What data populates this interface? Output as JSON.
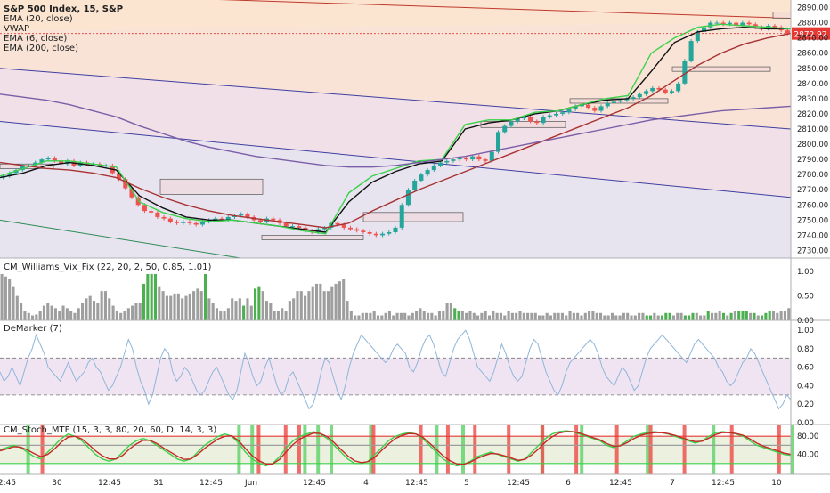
{
  "app": {
    "title": "S&P 500 Index, 15, S&P"
  },
  "legend": {
    "items": [
      "EMA (20, close)",
      "VWAP",
      "EMA (6, close)",
      "EMA (200, close)"
    ]
  },
  "price_tag": "2872.92",
  "panes": {
    "williams": "CM_Williams_Vix_Fix (22, 20, 2, 50, 0.85, 1.01)",
    "demarker": "DeMarker (7)",
    "stoch": "CM_Stoch_MTF (15, 3, 3, 80, 20, 60, D, 14, 3, 3)"
  },
  "colors": {
    "candle_up": "#26a69a",
    "candle_down": "#ef5350",
    "ema20": "#111111",
    "ema6": "#3bd14a",
    "ema200": "#a83232",
    "vwap": "#7b5ea7",
    "alert": "#ef5350",
    "bullish_bar": "#4caf50",
    "gray_bar": "#9e9e9e",
    "demarker_line": "#8fb6d9"
  },
  "chart_data": [
    {
      "type": "candlestick",
      "title": "S&P 500 Index, 15, S&P",
      "ylim": [
        2725,
        2895
      ],
      "y_ticks": [
        "2730.00",
        "2740.00",
        "2750.00",
        "2760.00",
        "2770.00",
        "2780.00",
        "2790.00",
        "2800.00",
        "2810.00",
        "2820.00",
        "2830.00",
        "2840.00",
        "2850.00",
        "2860.00",
        "2870.00",
        "2880.00",
        "2890.00"
      ],
      "x_tick_labels": [
        "2:45",
        "30",
        "12:45",
        "31",
        "12:45",
        "Jun",
        "12:45",
        "4",
        "12:45",
        "5",
        "12:45",
        "6",
        "12:45",
        "7",
        "12:45",
        "10"
      ],
      "close_series": [
        2779,
        2781,
        2783,
        2786,
        2786,
        2788,
        2790,
        2791,
        2789,
        2787,
        2789,
        2786,
        2788,
        2787,
        2787,
        2786,
        2786,
        2781,
        2777,
        2771,
        2765,
        2760,
        2756,
        2755,
        2752,
        2751,
        2749,
        2748,
        2749,
        2748,
        2747,
        2749,
        2750,
        2751,
        2750,
        2752,
        2753,
        2754,
        2752,
        2750,
        2749,
        2751,
        2750,
        2748,
        2746,
        2746,
        2745,
        2743,
        2742,
        2744,
        2745,
        2748,
        2747,
        2745,
        2744,
        2743,
        2742,
        2741,
        2740,
        2741,
        2742,
        2745,
        2760,
        2770,
        2776,
        2780,
        2783,
        2786,
        2788,
        2789,
        2790,
        2791,
        2790,
        2792,
        2790,
        2789,
        2795,
        2808,
        2812,
        2815,
        2817,
        2818,
        2815,
        2814,
        2818,
        2819,
        2820,
        2821,
        2823,
        2825,
        2826,
        2824,
        2822,
        2825,
        2827,
        2828,
        2829,
        2830,
        2831,
        2833,
        2835,
        2837,
        2836,
        2834,
        2835,
        2840,
        2855,
        2868,
        2874,
        2877,
        2880,
        2880,
        2879,
        2880,
        2878,
        2880,
        2879,
        2877,
        2876,
        2878,
        2877,
        2875,
        2872.92
      ],
      "series": [
        {
          "name": "EMA (20, close)",
          "values": [
            2778,
            2781,
            2786,
            2788,
            2786,
            2783,
            2766,
            2758,
            2752,
            2750,
            2750,
            2748,
            2746,
            2744,
            2742,
            2762,
            2775,
            2782,
            2787,
            2789,
            2810,
            2814,
            2816,
            2820,
            2822,
            2826,
            2829,
            2830,
            2848,
            2867,
            2874,
            2876,
            2877,
            2876,
            2876
          ]
        },
        {
          "name": "EMA (6, close)",
          "values": [
            2779,
            2784,
            2789,
            2789,
            2787,
            2785,
            2762,
            2755,
            2751,
            2749,
            2750,
            2748,
            2746,
            2743,
            2741,
            2768,
            2779,
            2784,
            2789,
            2790,
            2813,
            2816,
            2816,
            2821,
            2822,
            2826,
            2830,
            2832,
            2860,
            2870,
            2877,
            2879,
            2878,
            2877,
            2876
          ]
        },
        {
          "name": "EMA (200, close)",
          "values": [
            2788,
            2786,
            2784,
            2783,
            2781,
            2778,
            2771,
            2765,
            2760,
            2756,
            2753,
            2751,
            2749,
            2747,
            2745,
            2748,
            2756,
            2763,
            2770,
            2776,
            2782,
            2788,
            2794,
            2800,
            2806,
            2812,
            2818,
            2824,
            2832,
            2842,
            2852,
            2860,
            2866,
            2870,
            2873
          ]
        },
        {
          "name": "VWAP",
          "values": [
            2833,
            2831,
            2829,
            2826,
            2822,
            2818,
            2812,
            2807,
            2802,
            2798,
            2795,
            2792,
            2790,
            2788,
            2786,
            2785,
            2785,
            2786,
            2788,
            2790,
            2792,
            2795,
            2798,
            2801,
            2804,
            2807,
            2810,
            2813,
            2816,
            2818,
            2820,
            2822,
            2823,
            2824,
            2825
          ]
        }
      ]
    },
    {
      "type": "bar",
      "name": "CM_Williams_Vix_Fix (22, 20, 2, 50, 0.85, 1.01)",
      "ylim": [
        0,
        1.15
      ],
      "y_ticks": [
        "0.00",
        "0.50",
        "1.00",
        "1.50"
      ],
      "values": [
        0.95,
        0.9,
        0.85,
        0.7,
        0.5,
        0.35,
        0.2,
        0.15,
        0.1,
        0.12,
        0.2,
        0.3,
        0.35,
        0.3,
        0.25,
        0.2,
        0.3,
        0.25,
        0.2,
        0.15,
        0.25,
        0.35,
        0.45,
        0.5,
        0.4,
        0.35,
        0.6,
        0.6,
        0.45,
        0.3,
        0.2,
        0.15,
        0.2,
        0.25,
        0.3,
        0.35,
        0.35,
        0.75,
        0.95,
        0.95,
        0.95,
        0.7,
        0.6,
        0.5,
        0.5,
        0.55,
        0.55,
        0.45,
        0.5,
        0.55,
        0.6,
        0.65,
        0.6,
        0.95,
        0.45,
        0.35,
        0.25,
        0.2,
        0.2,
        0.25,
        0.45,
        0.4,
        0.45,
        0.3,
        0.45,
        0.3,
        0.65,
        0.7,
        0.6,
        0.4,
        0.35,
        0.2,
        0.2,
        0.25,
        0.2,
        0.4,
        0.45,
        0.6,
        0.6,
        0.5,
        0.6,
        0.7,
        0.75,
        0.75,
        0.6,
        0.6,
        0.7,
        0.75,
        0.8,
        0.85,
        0.4,
        0.2,
        0.1,
        0.1,
        0.15,
        0.15,
        0.15,
        0.2,
        0.1,
        0.1,
        0.15,
        0.2,
        0.1,
        0.15,
        0.15,
        0.15,
        0.1,
        0.15,
        0.2,
        0.25,
        0.2,
        0.15,
        0.15,
        0.1,
        0.2,
        0.2,
        0.35,
        0.35,
        0.25,
        0.2,
        0.2,
        0.15,
        0.2,
        0.15,
        0.1,
        0.15,
        0.2,
        0.1,
        0.2,
        0.15,
        0.15,
        0.1,
        0.2,
        0.15,
        0.15,
        0.2,
        0.15,
        0.15,
        0.15,
        0.15,
        0.1,
        0.1,
        0.15,
        0.1,
        0.15,
        0.15,
        0.15,
        0.1,
        0.2,
        0.15,
        0.15,
        0.1,
        0.15,
        0.2,
        0.2,
        0.15,
        0.15,
        0.1,
        0.1,
        0.15,
        0.1,
        0.1,
        0.15,
        0.15,
        0.1,
        0.1,
        0.15,
        0.15,
        0.1,
        0.1,
        0.15,
        0.1,
        0.1,
        0.15,
        0.15,
        0.1,
        0.15,
        0.15,
        0.1,
        0.1,
        0.15,
        0.15,
        0.1,
        0.1,
        0.2,
        0.15,
        0.15,
        0.2,
        0.15,
        0.1,
        0.15,
        0.2,
        0.2,
        0.2,
        0.2,
        0.15,
        0.15,
        0.1,
        0.1,
        0.15,
        0.2,
        0.2,
        0.15,
        0.2,
        0.2,
        0.25
      ],
      "highlight_indices": [
        37,
        38,
        39,
        40,
        53,
        63,
        66,
        67,
        118,
        119,
        168,
        169,
        172,
        173,
        174,
        178,
        179,
        180,
        184,
        188,
        190,
        192,
        193,
        194,
        196,
        198,
        199,
        200
      ]
    },
    {
      "type": "line",
      "name": "DeMarker (7)",
      "ylim": [
        0,
        1.05
      ],
      "y_ticks": [
        "0.00",
        "0.20",
        "0.40",
        "0.60",
        "0.80",
        "1.00"
      ],
      "levels": [
        0.3,
        0.7
      ],
      "values": [
        0.55,
        0.45,
        0.5,
        0.6,
        0.5,
        0.4,
        0.55,
        0.7,
        0.8,
        0.95,
        0.85,
        0.75,
        0.6,
        0.55,
        0.5,
        0.45,
        0.55,
        0.65,
        0.55,
        0.45,
        0.5,
        0.55,
        0.65,
        0.7,
        0.6,
        0.55,
        0.45,
        0.35,
        0.4,
        0.5,
        0.6,
        0.75,
        0.9,
        0.8,
        0.6,
        0.45,
        0.35,
        0.2,
        0.3,
        0.5,
        0.7,
        0.8,
        0.75,
        0.55,
        0.45,
        0.5,
        0.6,
        0.55,
        0.45,
        0.35,
        0.3,
        0.35,
        0.45,
        0.55,
        0.6,
        0.5,
        0.4,
        0.3,
        0.25,
        0.35,
        0.55,
        0.75,
        0.65,
        0.5,
        0.4,
        0.45,
        0.6,
        0.7,
        0.55,
        0.4,
        0.3,
        0.35,
        0.5,
        0.55,
        0.45,
        0.35,
        0.25,
        0.15,
        0.2,
        0.35,
        0.55,
        0.7,
        0.65,
        0.5,
        0.35,
        0.25,
        0.4,
        0.6,
        0.75,
        0.85,
        0.95,
        0.9,
        0.85,
        0.8,
        0.75,
        0.7,
        0.65,
        0.7,
        0.8,
        0.85,
        0.8,
        0.75,
        0.6,
        0.55,
        0.65,
        0.8,
        0.9,
        0.95,
        0.85,
        0.7,
        0.55,
        0.5,
        0.65,
        0.8,
        0.9,
        0.95,
        1.0,
        0.9,
        0.75,
        0.6,
        0.55,
        0.5,
        0.45,
        0.55,
        0.7,
        0.85,
        0.75,
        0.6,
        0.5,
        0.45,
        0.5,
        0.65,
        0.8,
        0.9,
        0.85,
        0.7,
        0.55,
        0.45,
        0.35,
        0.3,
        0.4,
        0.55,
        0.65,
        0.7,
        0.75,
        0.8,
        0.85,
        0.9,
        0.85,
        0.75,
        0.6,
        0.5,
        0.45,
        0.4,
        0.5,
        0.6,
        0.55,
        0.45,
        0.35,
        0.4,
        0.55,
        0.7,
        0.8,
        0.85,
        0.9,
        0.95,
        0.9,
        0.85,
        0.8,
        0.75,
        0.7,
        0.65,
        0.75,
        0.85,
        0.9,
        0.85,
        0.8,
        0.75,
        0.7,
        0.6,
        0.55,
        0.45,
        0.4,
        0.45,
        0.55,
        0.65,
        0.7,
        0.8,
        0.75,
        0.65,
        0.55,
        0.45,
        0.35,
        0.25,
        0.15,
        0.2,
        0.3,
        0.25
      ]
    },
    {
      "type": "line",
      "name": "CM_Stoch_MTF (15, 3, 3, 80, 20, 60, D, 14, 3, 3)",
      "ylim": [
        0,
        100
      ],
      "y_ticks": [
        "40.00",
        "80.00"
      ],
      "levels": [
        20,
        60,
        80
      ],
      "series": [
        {
          "values": [
            50,
            55,
            60,
            55,
            45,
            35,
            30,
            45,
            60,
            75,
            85,
            80,
            70,
            55,
            40,
            30,
            25,
            30,
            45,
            60,
            70,
            75,
            70,
            60,
            50,
            40,
            30,
            25,
            30,
            45,
            60,
            70,
            80,
            85,
            80,
            65,
            45,
            30,
            20,
            15,
            20,
            35,
            55,
            70,
            80,
            85,
            90,
            85,
            75,
            60,
            45,
            30,
            20,
            20,
            25,
            40,
            55,
            70,
            80,
            85,
            88,
            85,
            75,
            60,
            45,
            30,
            20,
            15,
            18,
            25,
            35,
            40,
            45,
            40,
            35,
            30,
            25,
            30,
            45,
            60,
            75,
            85,
            90,
            92,
            90,
            85,
            80,
            75,
            70,
            60,
            55,
            60,
            70,
            80,
            85,
            88,
            90,
            88,
            85,
            80,
            75,
            70,
            65,
            70,
            80,
            88,
            90,
            88,
            85,
            80,
            70,
            60,
            55,
            50,
            45,
            40,
            38
          ]
        },
        {
          "values": [
            48,
            52,
            57,
            56,
            50,
            42,
            35,
            40,
            52,
            67,
            78,
            80,
            74,
            62,
            48,
            37,
            30,
            30,
            38,
            52,
            63,
            71,
            71,
            64,
            54,
            45,
            36,
            29,
            30,
            40,
            53,
            64,
            74,
            80,
            81,
            70,
            53,
            37,
            26,
            19,
            19,
            29,
            46,
            62,
            74,
            81,
            87,
            86,
            79,
            66,
            51,
            37,
            26,
            22,
            24,
            34,
            49,
            63,
            75,
            82,
            86,
            85,
            78,
            65,
            51,
            37,
            26,
            19,
            18,
            23,
            31,
            37,
            42,
            41,
            37,
            32,
            27,
            29,
            39,
            52,
            67,
            79,
            87,
            90,
            90,
            87,
            82,
            77,
            72,
            64,
            58,
            59,
            66,
            75,
            82,
            86,
            88,
            88,
            86,
            82,
            77,
            72,
            68,
            69,
            76,
            84,
            88,
            88,
            86,
            82,
            74,
            65,
            58,
            53,
            48,
            43,
            40
          ]
        }
      ],
      "highlight_indices_red": [
        6,
        38,
        42,
        44,
        55,
        62,
        66,
        70,
        75,
        80,
        85,
        91,
        96,
        101,
        108,
        115
      ],
      "highlight_indices_green": [
        2,
        18,
        19,
        23,
        24,
        25,
        28,
        33,
        35,
        41,
        44,
        49,
        54,
        60
      ]
    }
  ]
}
